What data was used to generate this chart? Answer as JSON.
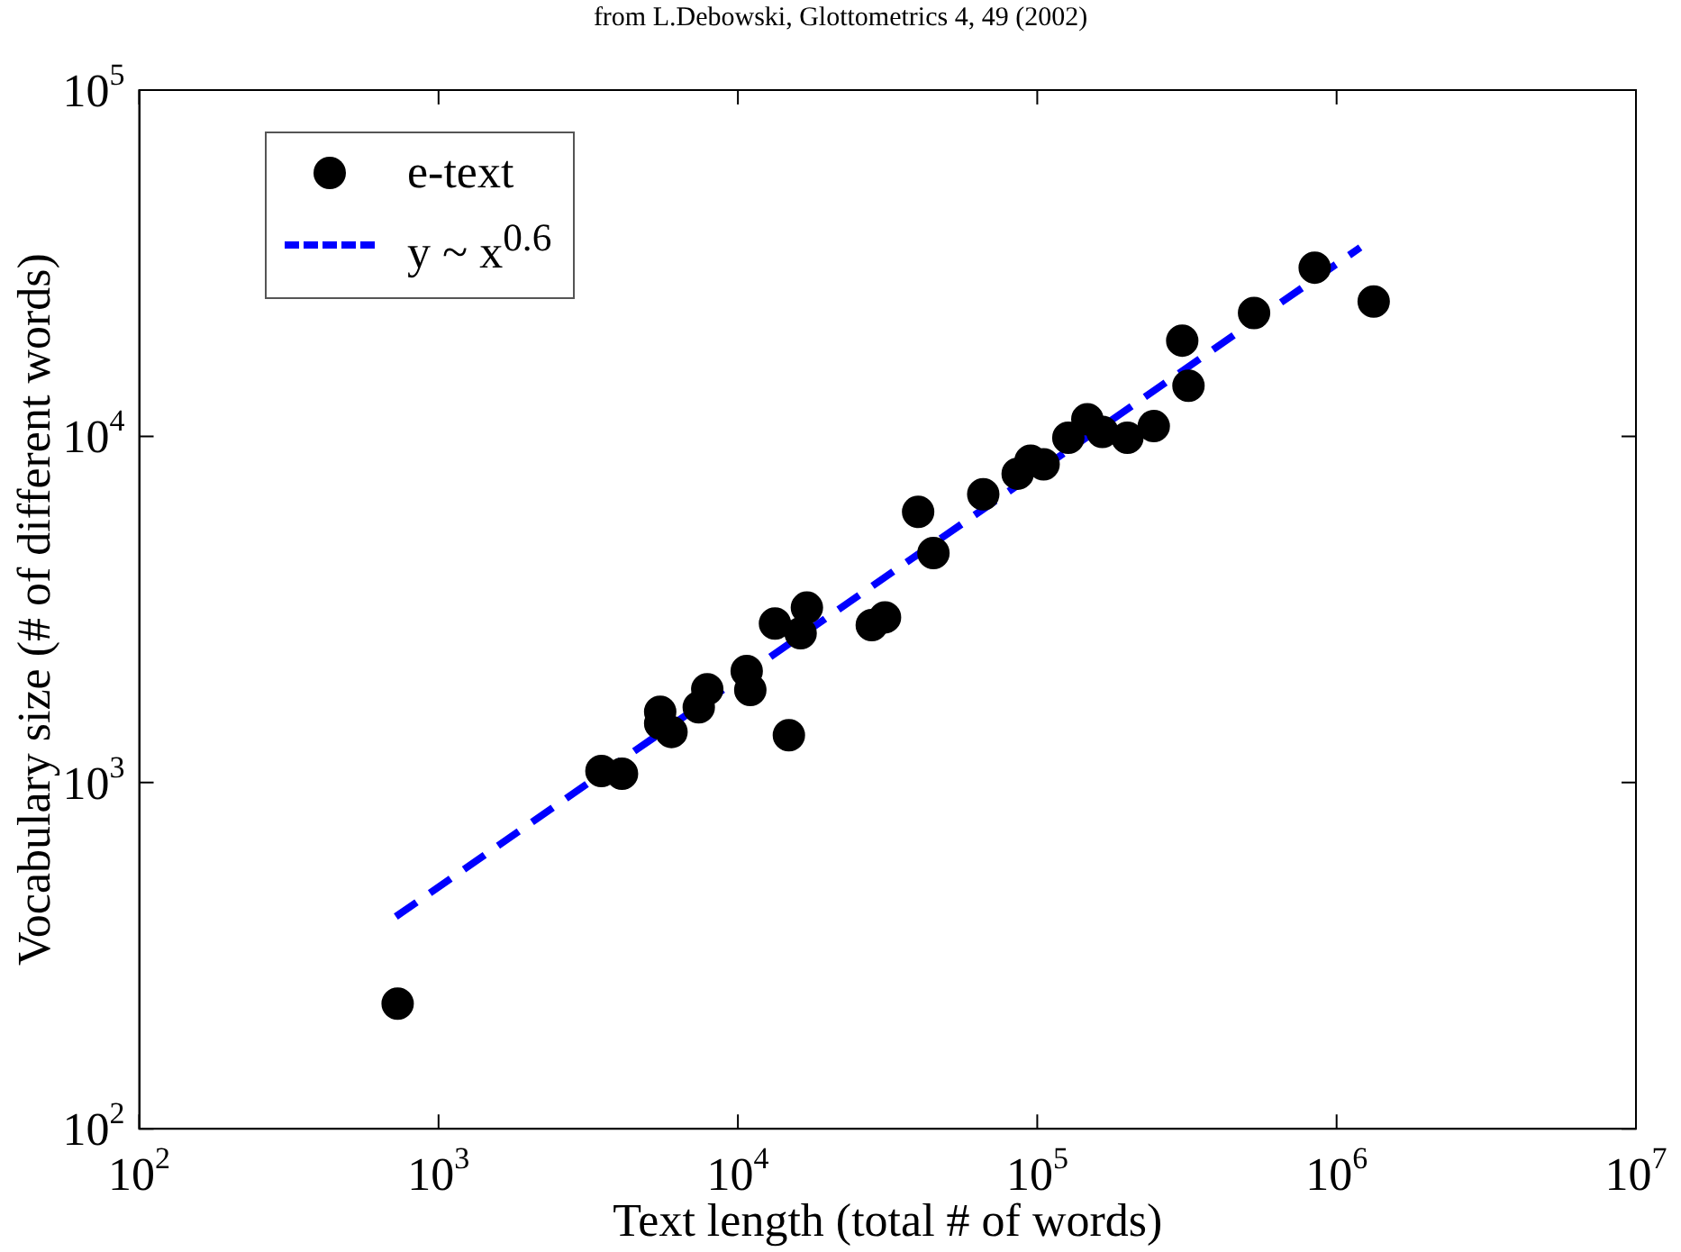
{
  "chart_data": {
    "type": "scatter",
    "title": "from L.Debowski, Glottometrics 4, 49 (2002)",
    "xlabel": "Text length (total # of words)",
    "ylabel": "Vocabulary size (# of different words)",
    "log": "xy",
    "grid": false,
    "legend": "top left",
    "marker": "circle",
    "xlim": [
      100,
      10000000
    ],
    "ylim": [
      100,
      100000
    ],
    "xticks": [
      {
        "value": 100,
        "label": "10$^{2}$"
      },
      {
        "value": 1000,
        "label": "10$^{3}$"
      },
      {
        "value": 10000,
        "label": "10$^{4}$"
      },
      {
        "value": 100000,
        "label": "10$^{5}$"
      },
      {
        "value": 1000000,
        "label": "10$^{6}$"
      },
      {
        "value": 10000000,
        "label": "10$^{7}$"
      }
    ],
    "yticks": [
      {
        "value": 100,
        "label": "10$^{2}$"
      },
      {
        "value": 1000,
        "label": "10$^{3}$"
      },
      {
        "value": 10000,
        "label": "10$^{4}$"
      },
      {
        "value": 100000,
        "label": "10$^{5}$"
      }
    ],
    "series": [
      {
        "name": "e-text",
        "color": "#000000",
        "x": [
          730,
          3500,
          4100,
          5500,
          5500,
          6000,
          7400,
          7900,
          10700,
          11000,
          13300,
          14800,
          16200,
          17000,
          28000,
          31000,
          40000,
          45000,
          66000,
          86000,
          95000,
          105000,
          127000,
          147000,
          165000,
          200000,
          245000,
          305000,
          320000,
          530000,
          845000,
          1330000
        ],
        "values": [
          230,
          1080,
          1060,
          1600,
          1480,
          1400,
          1650,
          1860,
          2100,
          1850,
          2880,
          1370,
          2700,
          3200,
          2850,
          3000,
          6050,
          4600,
          6800,
          7800,
          8500,
          8300,
          9900,
          11200,
          10300,
          9900,
          10700,
          18900,
          14000,
          22700,
          30700,
          24500
        ]
      },
      {
        "name": "y ~ x$^{0.6}$",
        "type": "line",
        "color": "#0000ff",
        "line_style": "dashed",
        "marker": "none",
        "x": [
          720,
          1200000
        ],
        "values": [
          410,
          35100
        ]
      }
    ]
  }
}
